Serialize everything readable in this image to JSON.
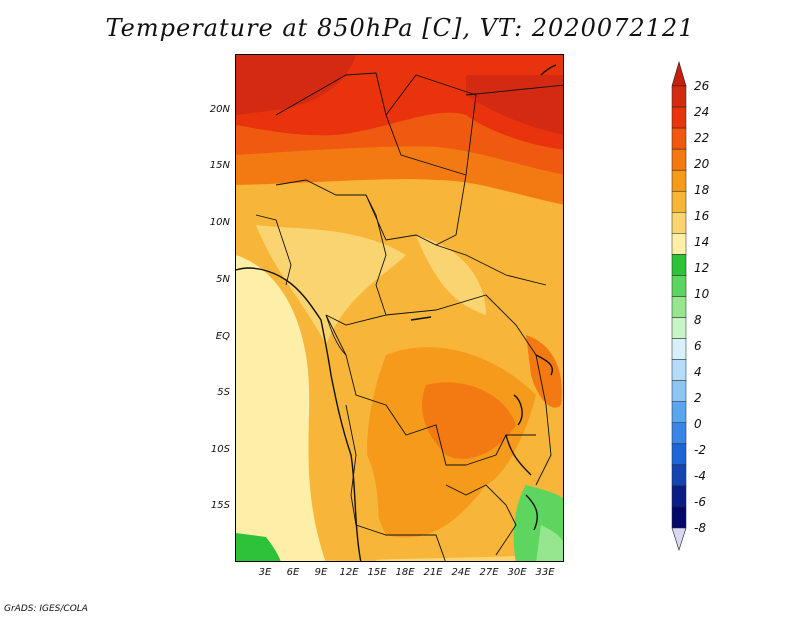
{
  "title": "Temperature at 850hPa [C], VT: 2020072121",
  "credit": "GrADS: IGES/COLA",
  "map": {
    "lat_labels": [
      "20N",
      "15N",
      "10N",
      "5N",
      "EQ",
      "5S",
      "10S",
      "15S"
    ],
    "lon_labels": [
      "3E",
      "6E",
      "9E",
      "12E",
      "15E",
      "18E",
      "21E",
      "24E",
      "27E",
      "30E",
      "33E"
    ]
  },
  "colorbar": {
    "levels": [
      "26",
      "24",
      "22",
      "20",
      "18",
      "16",
      "14",
      "12",
      "10",
      "8",
      "6",
      "4",
      "2",
      "0",
      "-2",
      "-4",
      "-6",
      "-8"
    ],
    "colors": [
      "#d42a12",
      "#e8330c",
      "#f05a10",
      "#f37a12",
      "#f59a1a",
      "#f7b53a",
      "#fad470",
      "#fdefa8",
      "#2ec23a",
      "#5ed55e",
      "#96e690",
      "#c8f5c8",
      "#d8f0f8",
      "#b4dcf8",
      "#8cc4f4",
      "#5aa6ee",
      "#3a86e6",
      "#1e64d2",
      "#1444b0",
      "#0a1e86",
      "#04086a"
    ],
    "top_color": "#c81e0c",
    "bottom_color": "#d8d8f4"
  }
}
